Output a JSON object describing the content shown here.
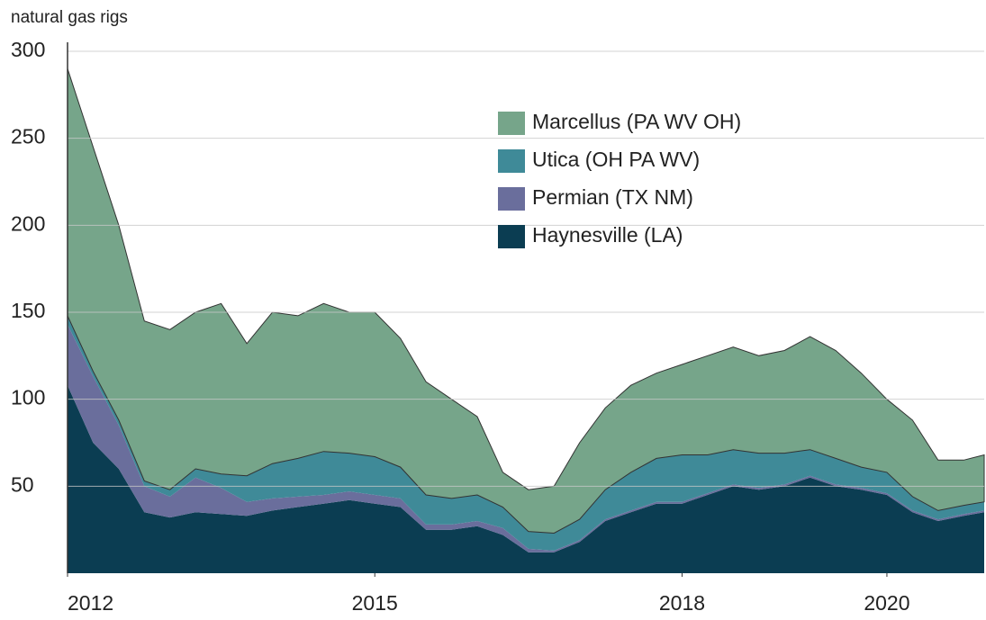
{
  "chart_data": {
    "type": "stacked_area",
    "y_label": "natural gas rigs",
    "x": [
      2012.0,
      2012.25,
      2012.5,
      2012.75,
      2013.0,
      2013.25,
      2013.5,
      2013.75,
      2014.0,
      2014.25,
      2014.5,
      2014.75,
      2015.0,
      2015.25,
      2015.5,
      2015.75,
      2016.0,
      2016.25,
      2016.5,
      2016.75,
      2017.0,
      2017.25,
      2017.5,
      2017.75,
      2018.0,
      2018.25,
      2018.5,
      2018.75,
      2019.0,
      2019.25,
      2019.5,
      2019.75,
      2020.0,
      2020.25,
      2020.5,
      2020.75,
      2020.95
    ],
    "series": [
      {
        "name": "Marcellus (PA WV OH)",
        "color": "#76a58a",
        "values": [
          142,
          129,
          112,
          92,
          92,
          90,
          98,
          76,
          87,
          82,
          85,
          81,
          83,
          74,
          65,
          57,
          45,
          20,
          24,
          27,
          44,
          47,
          50,
          49,
          52,
          57,
          59,
          56,
          59,
          65,
          62,
          54,
          42,
          44,
          29,
          26,
          27
        ]
      },
      {
        "name": "Utica (OH PA WV)",
        "color": "#3f8a98",
        "values": [
          5,
          3,
          3,
          3,
          4,
          5,
          8,
          15,
          20,
          22,
          25,
          22,
          22,
          18,
          17,
          15,
          15,
          12,
          10,
          10,
          12,
          17,
          22,
          25,
          27,
          22,
          20,
          20,
          18,
          15,
          15,
          12,
          12,
          8,
          5,
          5,
          5
        ]
      },
      {
        "name": "Permian (TX NM)",
        "color": "#6a6e9c",
        "values": [
          35,
          38,
          25,
          15,
          12,
          20,
          15,
          8,
          7,
          6,
          5,
          5,
          5,
          5,
          3,
          3,
          3,
          4,
          2,
          1,
          1,
          1,
          1,
          1,
          1,
          1,
          1,
          1,
          1,
          1,
          1,
          1,
          1,
          1,
          1,
          1,
          1
        ]
      },
      {
        "name": "Haynesville (LA)",
        "color": "#0b3d52",
        "values": [
          108,
          75,
          60,
          35,
          32,
          35,
          34,
          33,
          36,
          38,
          40,
          42,
          40,
          38,
          25,
          25,
          27,
          22,
          12,
          12,
          18,
          30,
          35,
          40,
          40,
          45,
          50,
          48,
          50,
          55,
          50,
          48,
          45,
          35,
          30,
          33,
          35
        ]
      }
    ],
    "xlim": [
      2012,
      2020.95
    ],
    "xticks": [
      2012,
      2015,
      2018,
      2020
    ],
    "ylim": [
      0,
      300
    ],
    "yticks": [
      50,
      100,
      150,
      200,
      250,
      300
    ],
    "grid": true
  }
}
